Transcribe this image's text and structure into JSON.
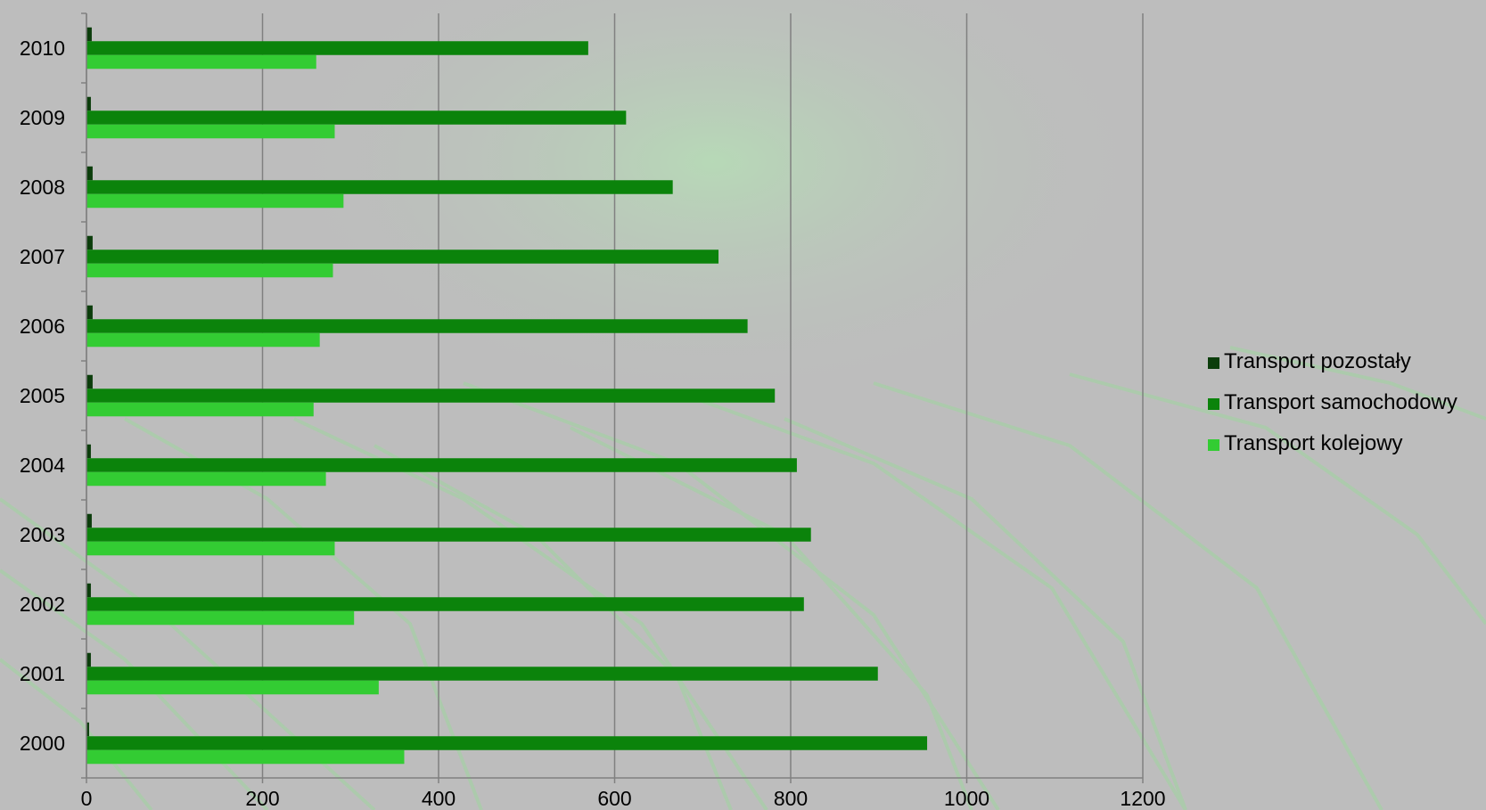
{
  "chart_data": {
    "type": "bar",
    "orientation": "horizontal",
    "categories": [
      "2000",
      "2001",
      "2002",
      "2003",
      "2004",
      "2005",
      "2006",
      "2007",
      "2008",
      "2009",
      "2010"
    ],
    "series": [
      {
        "name": "Transport pozostały",
        "color": "#0b3d0b",
        "values": [
          3,
          5,
          5,
          6,
          5,
          7,
          7,
          7,
          7,
          5,
          6
        ]
      },
      {
        "name": "Transport samochodowy",
        "color": "#0b830b",
        "values": [
          955,
          899,
          815,
          823,
          807,
          782,
          751,
          718,
          666,
          613,
          570
        ]
      },
      {
        "name": "Transport kolejowy",
        "color": "#33cc33",
        "values": [
          361,
          332,
          304,
          282,
          272,
          258,
          265,
          280,
          292,
          282,
          261
        ]
      }
    ],
    "x_ticks": [
      "0",
      "200",
      "400",
      "600",
      "800",
      "1000",
      "1200"
    ],
    "xlim": [
      0,
      1200
    ],
    "grid": true,
    "legend_position": "right",
    "background": "circuit-board-green-gray"
  }
}
